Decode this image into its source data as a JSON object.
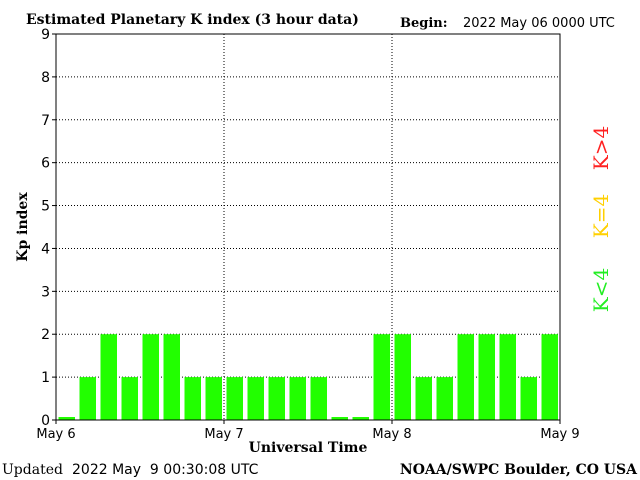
{
  "title": "Estimated Planetary K index (3 hour data)",
  "begin_label": "Begin:",
  "begin_value": "2022 May 06 0000 UTC",
  "updated_label": "Updated",
  "updated_value": "2022 May  9 00:30:08 UTC",
  "credit": "NOAA/SWPC Boulder, CO USA",
  "legend": {
    "high": {
      "label": "K>4",
      "color": "#ff2020"
    },
    "equal": {
      "label": "K=4",
      "color": "#ffd000"
    },
    "low": {
      "label": "K<4",
      "color": "#22ee22"
    }
  },
  "chart_data": {
    "type": "bar",
    "title": "Estimated Planetary K index (3 hour data)",
    "xlabel": "Universal Time",
    "ylabel": "Kp index",
    "ylim": [
      0,
      9
    ],
    "yticks": [
      "0",
      "1",
      "2",
      "3",
      "4",
      "5",
      "6",
      "7",
      "8",
      "9"
    ],
    "xticks": [
      "May 6",
      "May 7",
      "May 8",
      "May 9"
    ],
    "grid": true,
    "bar_color": "#22ff00",
    "values": [
      0,
      1,
      2,
      1,
      2,
      2,
      1,
      1,
      1,
      1,
      1,
      1,
      1,
      0,
      0,
      2,
      2,
      1,
      1,
      2,
      2,
      2,
      1,
      2
    ]
  }
}
